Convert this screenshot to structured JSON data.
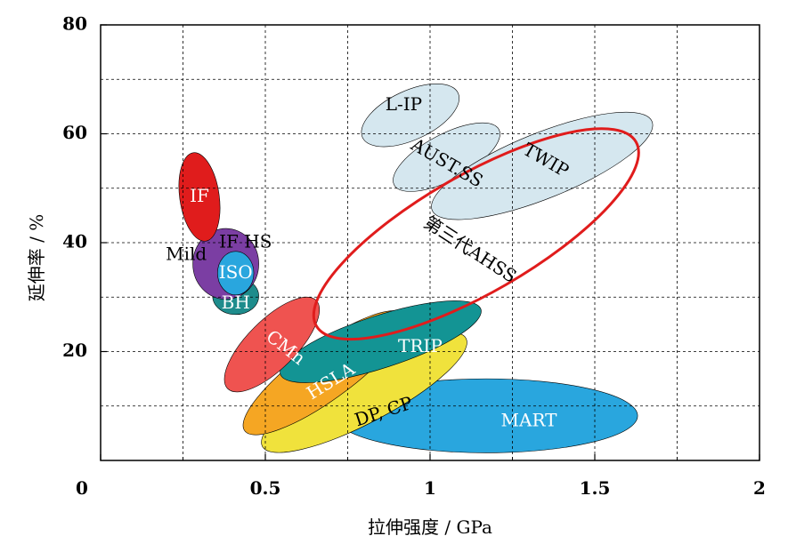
{
  "chart_data": {
    "type": "scatter",
    "title": "",
    "xlabel": "拉伸强度 / GPa",
    "ylabel": "延伸率 / %",
    "xlim": [
      0,
      2
    ],
    "ylim": [
      0,
      80
    ],
    "x_ticks": [
      {
        "value": 0,
        "label": "0"
      },
      {
        "value": 0.5,
        "label": "0.5"
      },
      {
        "value": 1,
        "label": "1"
      },
      {
        "value": 1.5,
        "label": "1.5"
      },
      {
        "value": 2,
        "label": "2"
      }
    ],
    "y_ticks": [
      {
        "value": 20,
        "label": "20"
      },
      {
        "value": 40,
        "label": "40"
      },
      {
        "value": 60,
        "label": "60"
      },
      {
        "value": 80,
        "label": "80"
      }
    ],
    "grid": true,
    "regions": [
      {
        "name": "L-IP",
        "cx": 0.94,
        "cy": 63.4,
        "rx": 0.16,
        "ry": 4.5,
        "angle": -25,
        "color": "#d3e6ee",
        "label_color": "#000000"
      },
      {
        "name": "AUST.SS",
        "cx": 1.05,
        "cy": 55.7,
        "rx": 0.18,
        "ry": 4.2,
        "angle": -28,
        "color": "#d3e6ee",
        "label_color": "#000000"
      },
      {
        "name": "TWIP",
        "cx": 1.34,
        "cy": 54.1,
        "rx": 0.36,
        "ry": 6.0,
        "angle": -22,
        "color": "#d3e6ee",
        "label_color": "#000000"
      },
      {
        "name": "MART",
        "cx": 1.17,
        "cy": 8.2,
        "rx": 0.46,
        "ry": 6.8,
        "angle": 0,
        "color": "#29a6de",
        "label_color": "#ffffff"
      },
      {
        "name": "DP, CP",
        "cx": 0.8,
        "cy": 12.5,
        "rx": 0.35,
        "ry": 5.5,
        "angle": -28,
        "color": "#f0e23c",
        "label_color": "#000000"
      },
      {
        "name": "HSLA",
        "cx": 0.68,
        "cy": 16.1,
        "rx": 0.3,
        "ry": 5.0,
        "angle": -36,
        "color": "#f5a623",
        "label_color": "#ffffff"
      },
      {
        "name": "TRIP",
        "cx": 0.85,
        "cy": 21.8,
        "rx": 0.32,
        "ry": 4.8,
        "angle": -18,
        "color": "#139494",
        "label_color": "#ffffff"
      },
      {
        "name": "CMn",
        "cx": 0.52,
        "cy": 21.3,
        "rx": 0.19,
        "ry": 4.5,
        "angle": -45,
        "color": "#ef5350",
        "label_color": "#ffffff"
      },
      {
        "name": "BH",
        "cx": 0.41,
        "cy": 30.2,
        "rx": 0.07,
        "ry": 3.4,
        "angle": 0,
        "color": "#1e8c8c",
        "label_color": "#ffffff"
      },
      {
        "name": "IF_HS",
        "cx": 0.38,
        "cy": 36.1,
        "rx": 0.1,
        "ry": 6.5,
        "angle": 0,
        "color": "#7b3ea3",
        "label_color": "#000000"
      },
      {
        "name": "ISO",
        "cx": 0.41,
        "cy": 34.4,
        "rx": 0.055,
        "ry": 4.0,
        "angle": 0,
        "color": "#29a6de",
        "label_color": "#ffffff"
      },
      {
        "name": "IF",
        "cx": 0.3,
        "cy": 48.4,
        "rx": 0.06,
        "ry": 8.2,
        "angle": -8,
        "color": "#e01c1c",
        "label_color": "#ffffff"
      }
    ],
    "target_region": {
      "name": "第三代AHSS",
      "cx": 1.14,
      "cy": 41.6,
      "rx": 0.56,
      "ry": 10.8,
      "angle": -30,
      "color": "#e01c1c"
    },
    "annotations": [
      {
        "text": "IF",
        "x": 0.3,
        "y": 48.4,
        "rotate": 0,
        "color": "#ffffff"
      },
      {
        "text": "Mild",
        "x": 0.26,
        "y": 37.7,
        "rotate": 0,
        "color": "#000000"
      },
      {
        "text": "IF  HS",
        "x": 0.44,
        "y": 40.0,
        "rotate": 0,
        "color": "#000000"
      },
      {
        "text": "ISO",
        "x": 0.41,
        "y": 34.4,
        "rotate": 0,
        "color": "#ffffff"
      },
      {
        "text": "BH",
        "x": 0.41,
        "y": 28.8,
        "rotate": 0,
        "color": "#ffffff"
      },
      {
        "text": "CMn",
        "x": 0.56,
        "y": 20.6,
        "rotate": 38,
        "color": "#ffffff"
      },
      {
        "text": "HSLA",
        "x": 0.7,
        "y": 14.4,
        "rotate": -32,
        "color": "#ffffff"
      },
      {
        "text": "DP, CP",
        "x": 0.86,
        "y": 8.8,
        "rotate": -18,
        "color": "#000000"
      },
      {
        "text": "TRIP",
        "x": 0.97,
        "y": 20.8,
        "rotate": 0,
        "color": "#ffffff"
      },
      {
        "text": "MART",
        "x": 1.3,
        "y": 7.2,
        "rotate": 0,
        "color": "#ffffff"
      },
      {
        "text": "L-IP",
        "x": 0.92,
        "y": 65.2,
        "rotate": 0,
        "color": "#000000"
      },
      {
        "text": "AUST.SS",
        "x": 1.05,
        "y": 54.5,
        "rotate": 30,
        "color": "#000000"
      },
      {
        "text": "TWIP",
        "x": 1.35,
        "y": 55.0,
        "rotate": 30,
        "color": "#000000"
      },
      {
        "text": "第三代AHSS",
        "x": 1.12,
        "y": 38.6,
        "rotate": 33,
        "color": "#000000"
      }
    ]
  }
}
